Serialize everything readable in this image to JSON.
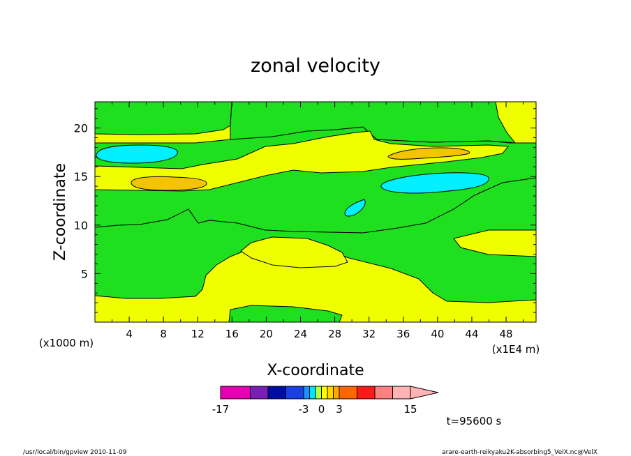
{
  "chart_data": {
    "type": "contour",
    "title": "zonal velocity",
    "xlabel": "X-coordinate",
    "ylabel": "Z-coordinate",
    "x_unit": "(x1E4 m)",
    "y_unit": "(x1000 m)",
    "xlim": [
      0,
      51.5
    ],
    "ylim": [
      0,
      22.7
    ],
    "x_ticks": [
      "4",
      "8",
      "12",
      "16",
      "20",
      "24",
      "28",
      "32",
      "36",
      "40",
      "44",
      "48"
    ],
    "y_ticks": [
      "5",
      "10",
      "15",
      "20"
    ],
    "colorbar": {
      "levels": [
        -17,
        -12,
        -9,
        -6,
        -3,
        -2,
        -1,
        0,
        1,
        2,
        3,
        6,
        9,
        12,
        15
      ],
      "colors": [
        "#e600b4",
        "#7a1fb4",
        "#000da5",
        "#1a3fe6",
        "#1e90ff",
        "#00e5ff",
        "#b5ff3c",
        "#ffff00",
        "#ffd700",
        "#ffaa00",
        "#ff6600",
        "#ff1a1a",
        "#ff8080",
        "#ffb3b3"
      ],
      "tick_labels": [
        "-17",
        "-3",
        "0",
        "3",
        "15"
      ],
      "extend": "max"
    },
    "filled_regions": {
      "positive_small": "#f0ff00",
      "negative_small": "#1ee01e",
      "positive_medium": "#f5c400",
      "negative_medium": "#00f0ff"
    }
  },
  "annotations": {
    "time": "t=95600 s",
    "footer_left": "/usr/local/bin/gpview   2010-11-09",
    "footer_right": "arare-earth-reikyaku2K-absorbing5_VelX.nc@VelX"
  }
}
